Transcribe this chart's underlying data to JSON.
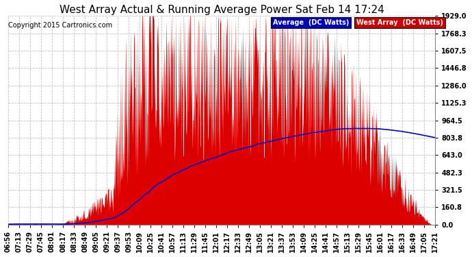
{
  "title": "West Array Actual & Running Average Power Sat Feb 14 17:24",
  "copyright": "Copyright 2015 Cartronics.com",
  "ylabel_right_values": [
    1929.0,
    1768.3,
    1607.5,
    1446.8,
    1286.0,
    1125.3,
    964.5,
    803.8,
    643.0,
    482.3,
    321.5,
    160.8,
    0.0
  ],
  "ymax": 1929.0,
  "ymin": 0.0,
  "legend_avg_label": "Average  (DC Watts)",
  "legend_west_label": "West Array  (DC Watts)",
  "legend_avg_bg": "#0000bb",
  "legend_west_bg": "#cc0000",
  "x_tick_labels": [
    "06:56",
    "07:13",
    "07:29",
    "07:45",
    "08:01",
    "08:17",
    "08:33",
    "08:49",
    "09:05",
    "09:21",
    "09:37",
    "09:53",
    "10:09",
    "10:25",
    "10:41",
    "10:57",
    "11:13",
    "11:29",
    "11:45",
    "12:01",
    "12:17",
    "12:33",
    "12:49",
    "13:05",
    "13:21",
    "13:37",
    "13:53",
    "14:09",
    "14:25",
    "14:41",
    "14:57",
    "15:13",
    "15:29",
    "15:45",
    "16:01",
    "16:17",
    "16:33",
    "16:49",
    "17:05",
    "17:21"
  ],
  "background_color": "#ffffff",
  "grid_color": "#bbbbbb",
  "area_color": "#dd0000",
  "avg_line_color": "#0000cc",
  "title_fontsize": 11,
  "tick_fontsize": 7,
  "copyright_fontsize": 7
}
